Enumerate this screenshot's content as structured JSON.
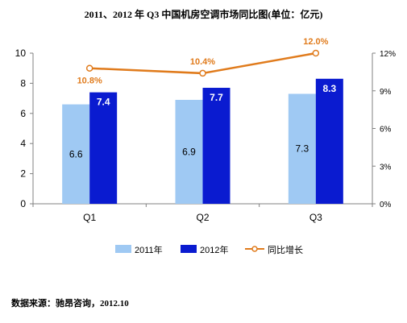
{
  "chart_data": {
    "type": "bar",
    "title": "2011、2012 年 Q3 中国机房空调市场同比图(单位：亿元)",
    "categories": [
      "Q1",
      "Q2",
      "Q3"
    ],
    "series": [
      {
        "name": "2011年",
        "kind": "bar",
        "axis": "left",
        "color": "#9fc9f3",
        "values": [
          6.6,
          6.9,
          7.3
        ]
      },
      {
        "name": "2012年",
        "kind": "bar",
        "axis": "left",
        "color": "#0a1bd0",
        "values": [
          7.4,
          7.7,
          8.3
        ]
      },
      {
        "name": "同比增长",
        "kind": "line",
        "axis": "right",
        "color": "#e07b1c",
        "values": [
          10.8,
          10.4,
          12.0
        ]
      }
    ],
    "value_labels": {
      "bar_2011": [
        "6.6",
        "6.9",
        "7.3"
      ],
      "bar_2012": [
        "7.4",
        "7.7",
        "8.3"
      ],
      "line": [
        "10.8%",
        "10.4%",
        "12.0%"
      ]
    },
    "y_left": {
      "min": 0,
      "max": 10,
      "ticks": [
        0,
        2,
        4,
        6,
        8,
        10
      ],
      "tick_labels": [
        "0",
        "2",
        "4",
        "6",
        "8",
        "10"
      ]
    },
    "y_right": {
      "min": 0,
      "max": 12,
      "ticks": [
        0,
        3,
        6,
        9,
        12
      ],
      "tick_labels": [
        "0%",
        "3%",
        "6%",
        "9%",
        "12%"
      ]
    },
    "grid": false,
    "legend": {
      "placement": "bottom",
      "labels": [
        "2011年",
        "2012年",
        "同比增长"
      ]
    },
    "source": "数据来源：驰昂咨询，2012.10"
  }
}
